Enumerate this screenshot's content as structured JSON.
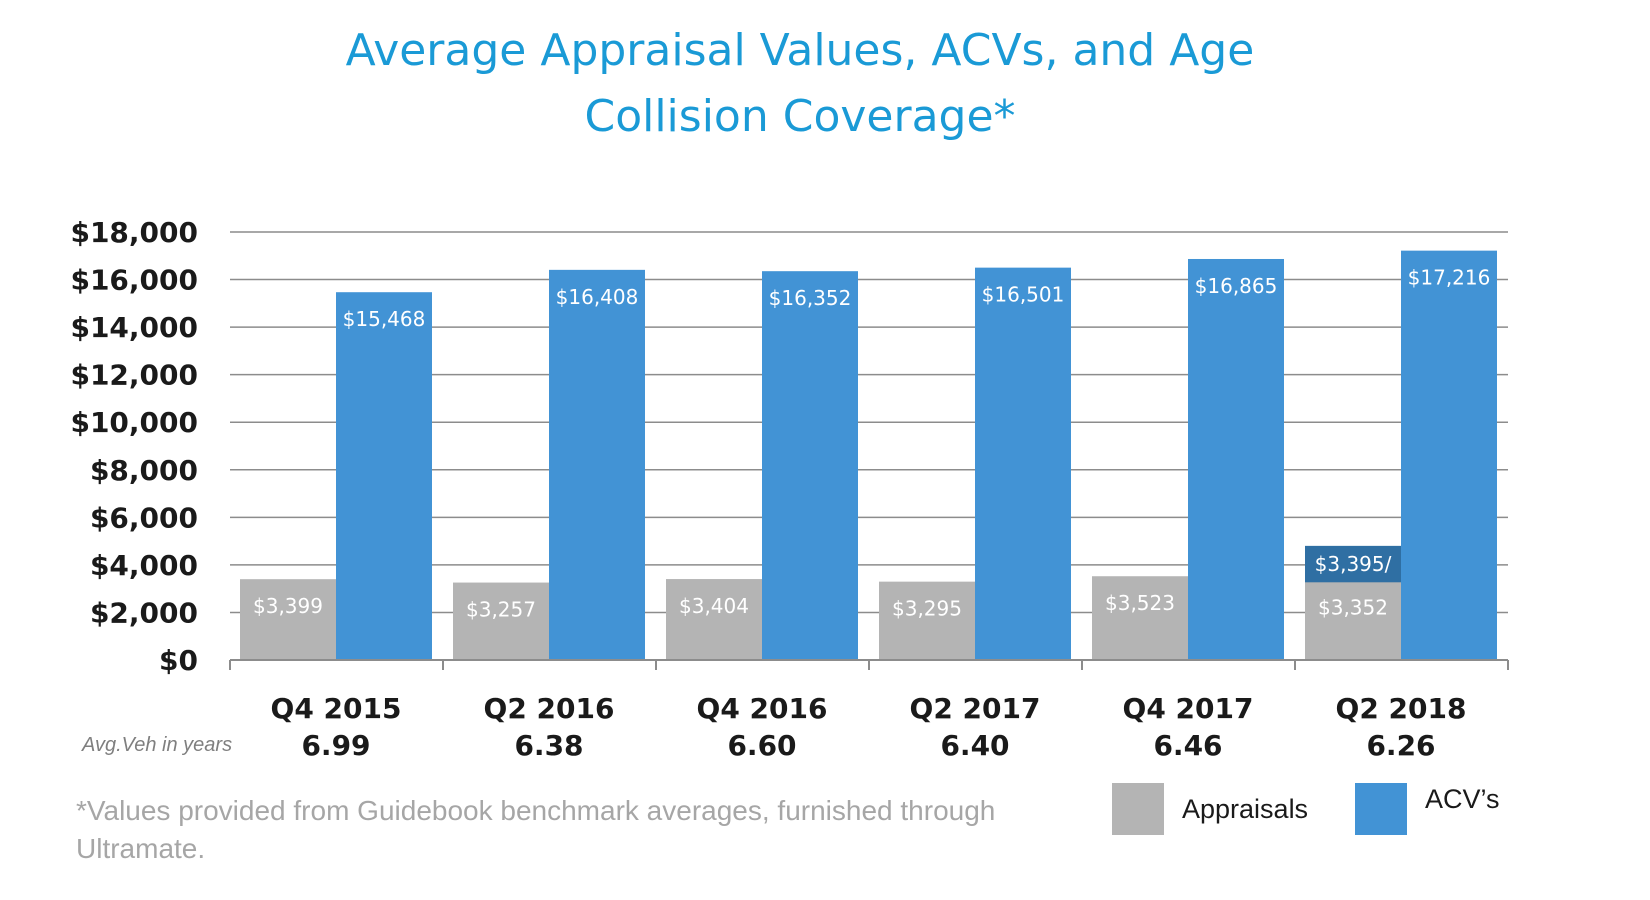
{
  "chart_data": {
    "type": "bar",
    "title": "Average Appraisal Values, ACVs, and Age Collision Coverage*",
    "title_lines": [
      "Average Appraisal Values, ACVs, and Age",
      "Collision Coverage*"
    ],
    "categories": [
      "Q4 2015",
      "Q2 2016",
      "Q4 2016",
      "Q2 2017",
      "Q4 2017",
      "Q2 2018"
    ],
    "avg_vehicle_age": [
      "6.99",
      "6.38",
      "6.60",
      "6.40",
      "6.46",
      "6.26"
    ],
    "avg_vehicle_age_label": "Avg.Veh in years",
    "series": [
      {
        "name": "Appraisals",
        "color": "#b4b4b4",
        "values": [
          3399,
          3257,
          3404,
          3295,
          3523,
          3352
        ],
        "labels": [
          "$3,399",
          "$3,257",
          "$3,404",
          "$3,295",
          "$3,523",
          "$3,352"
        ]
      },
      {
        "name": "ACV’s",
        "color": "#4293d5",
        "values": [
          15468,
          16408,
          16352,
          16501,
          16865,
          17216
        ],
        "labels": [
          "$15,468",
          "$16,408",
          "$16,352",
          "$16,501",
          "$16,865",
          "$17,216"
        ]
      }
    ],
    "overlay": {
      "category": "Q2 2018",
      "value": 4800,
      "label": "$3,395/",
      "color": "#2f6fa3"
    },
    "ylim": [
      0,
      18000
    ],
    "yticks": [
      "$0",
      "$2,000",
      "$4,000",
      "$6,000",
      "$8,000",
      "$10,000",
      "$12,000",
      "$14,000",
      "$16,000",
      "$18,000"
    ],
    "grid": true,
    "legend": "bottom-right",
    "footnote": "*Values provided from Guidebook benchmark averages, furnished through Ultramate."
  }
}
